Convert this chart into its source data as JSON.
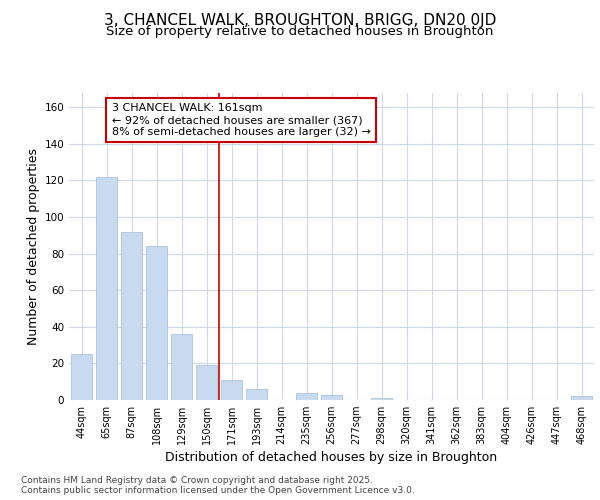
{
  "title_line1": "3, CHANCEL WALK, BROUGHTON, BRIGG, DN20 0JD",
  "title_line2": "Size of property relative to detached houses in Broughton",
  "xlabel": "Distribution of detached houses by size in Broughton",
  "ylabel": "Number of detached properties",
  "categories": [
    "44sqm",
    "65sqm",
    "87sqm",
    "108sqm",
    "129sqm",
    "150sqm",
    "171sqm",
    "193sqm",
    "214sqm",
    "235sqm",
    "256sqm",
    "277sqm",
    "298sqm",
    "320sqm",
    "341sqm",
    "362sqm",
    "383sqm",
    "404sqm",
    "426sqm",
    "447sqm",
    "468sqm"
  ],
  "values": [
    25,
    122,
    92,
    84,
    36,
    19,
    11,
    6,
    0,
    4,
    3,
    0,
    1,
    0,
    0,
    0,
    0,
    0,
    0,
    0,
    2
  ],
  "bar_color": "#c8daf0",
  "bar_edge_color": "#a0bcd8",
  "vline_x": 5.5,
  "vline_color": "#cc0000",
  "annotation_text": "3 CHANCEL WALK: 161sqm\n← 92% of detached houses are smaller (367)\n8% of semi-detached houses are larger (32) →",
  "annotation_box_color": "#ffffff",
  "annotation_box_edge_color": "#cc0000",
  "ylim": [
    0,
    168
  ],
  "yticks": [
    0,
    20,
    40,
    60,
    80,
    100,
    120,
    140,
    160
  ],
  "background_color": "#ffffff",
  "grid_color": "#d0d8e8",
  "footer_text": "Contains HM Land Registry data © Crown copyright and database right 2025.\nContains public sector information licensed under the Open Government Licence v3.0.",
  "title_fontsize": 11,
  "subtitle_fontsize": 9.5,
  "axis_label_fontsize": 9,
  "tick_fontsize": 7,
  "annotation_fontsize": 8,
  "footer_fontsize": 6.5
}
